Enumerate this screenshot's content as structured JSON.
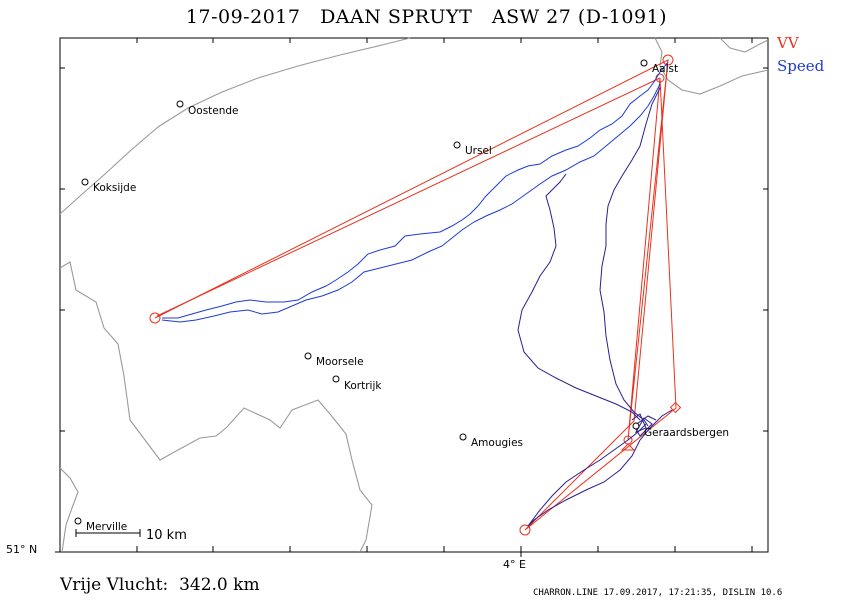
{
  "header": {
    "title": "17-09-2017   DAAN SPRUYT   ASW 27 (D-1091)"
  },
  "legend": {
    "items": [
      {
        "label": "VV",
        "color": "#e8321e"
      },
      {
        "label": "Speed",
        "color": "#1f3bd6"
      }
    ]
  },
  "axes": {
    "lat_label": "51° N",
    "lon_label": "4° E"
  },
  "towns": [
    {
      "name": "Oostende"
    },
    {
      "name": "Koksijde"
    },
    {
      "name": "Ursel"
    },
    {
      "name": "Aalst"
    },
    {
      "name": "Moorsele"
    },
    {
      "name": "Kortrijk"
    },
    {
      "name": "Geraardsbergen"
    },
    {
      "name": "Amougies"
    },
    {
      "name": "Merville"
    }
  ],
  "scale_bar": {
    "label": "10 km"
  },
  "footer": {
    "distance": "Vrije Vlucht:  342.0 km",
    "info": "CHARRON.LINE 17.09.2017, 17:21:35, DISLIN 10.6"
  },
  "colors": {
    "task": "#e8321e",
    "track": "#1f3bd6",
    "track_dark": "#2a1f8f",
    "borders": "#9a9a9a"
  }
}
